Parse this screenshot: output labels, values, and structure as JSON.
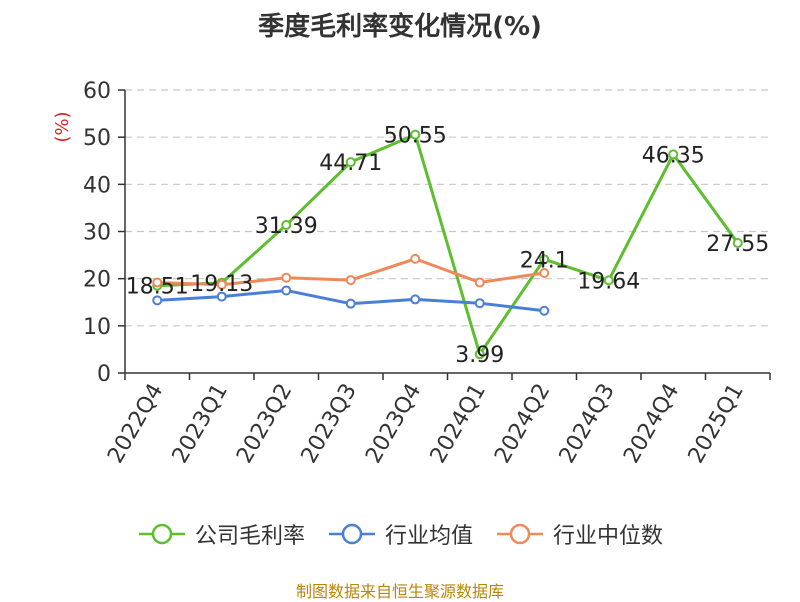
{
  "chart_data": {
    "type": "line",
    "title": "季度毛利率变化情况(%)",
    "ylabel": "(%)",
    "xlabel": "",
    "ylim": [
      0,
      60
    ],
    "yticks": [
      0,
      10,
      20,
      30,
      40,
      50,
      60
    ],
    "grid": true,
    "legend_position": "bottom",
    "categories": [
      "2022Q4",
      "2023Q1",
      "2023Q2",
      "2023Q3",
      "2023Q4",
      "2024Q1",
      "2024Q2",
      "2024Q3",
      "2024Q4",
      "2025Q1"
    ],
    "series": [
      {
        "name": "公司毛利率",
        "color": "#5dbe2e",
        "values": [
          18.51,
          19.13,
          31.39,
          44.71,
          50.55,
          3.99,
          24.1,
          19.64,
          46.35,
          27.55
        ],
        "labels": [
          "18.51",
          "19.13",
          "31.39",
          "44.71",
          "50.55",
          "3.99",
          "24.1",
          "19.64",
          "46.35",
          "27.55"
        ]
      },
      {
        "name": "行业均值",
        "color": "#4a7fd8",
        "values": [
          15.4,
          16.2,
          17.5,
          14.7,
          15.6,
          14.8,
          13.2,
          null,
          null,
          null
        ]
      },
      {
        "name": "行业中位数",
        "color": "#f0895a",
        "values": [
          19.2,
          18.7,
          20.2,
          19.7,
          24.2,
          19.2,
          21.2,
          null,
          null,
          null
        ]
      }
    ]
  },
  "source": "制图数据来自恒生聚源数据库"
}
